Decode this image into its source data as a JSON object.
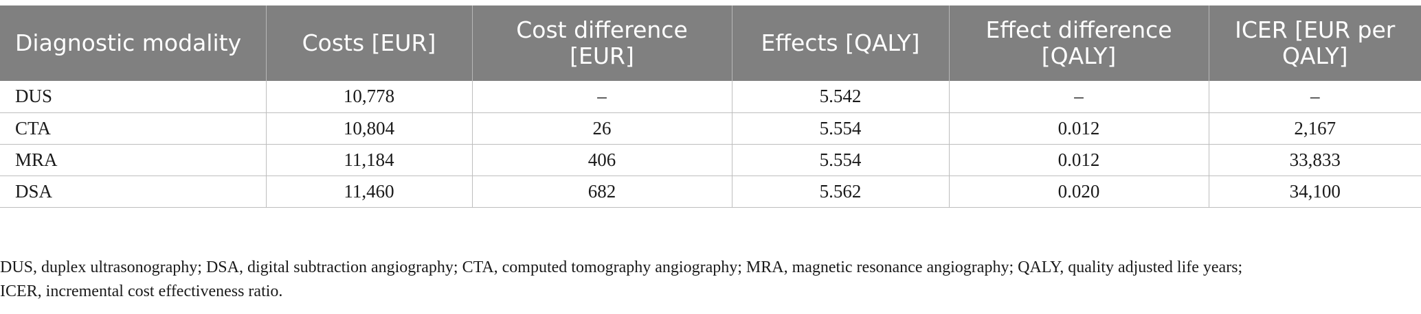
{
  "table": {
    "headers": [
      "Diagnostic modality",
      "Costs [EUR]",
      "Cost difference [EUR]",
      "Effects [QALY]",
      "Effect difference [QALY]",
      "ICER [EUR per QALY]"
    ],
    "rows": [
      [
        "DUS",
        "10,778",
        "–",
        "5.542",
        "–",
        "–"
      ],
      [
        "CTA",
        "10,804",
        "26",
        "5.554",
        "0.012",
        "2,167"
      ],
      [
        "MRA",
        "11,184",
        "406",
        "5.554",
        "0.012",
        "33,833"
      ],
      [
        "DSA",
        "11,460",
        "682",
        "5.562",
        "0.020",
        "34,100"
      ]
    ]
  },
  "footnote": {
    "line1": "DUS, duplex ultrasonography; DSA, digital subtraction angiography; CTA, computed tomography angiography; MRA, magnetic resonance angiography; QALY, quality adjusted life years;",
    "line2": "ICER, incremental cost effectiveness ratio."
  }
}
